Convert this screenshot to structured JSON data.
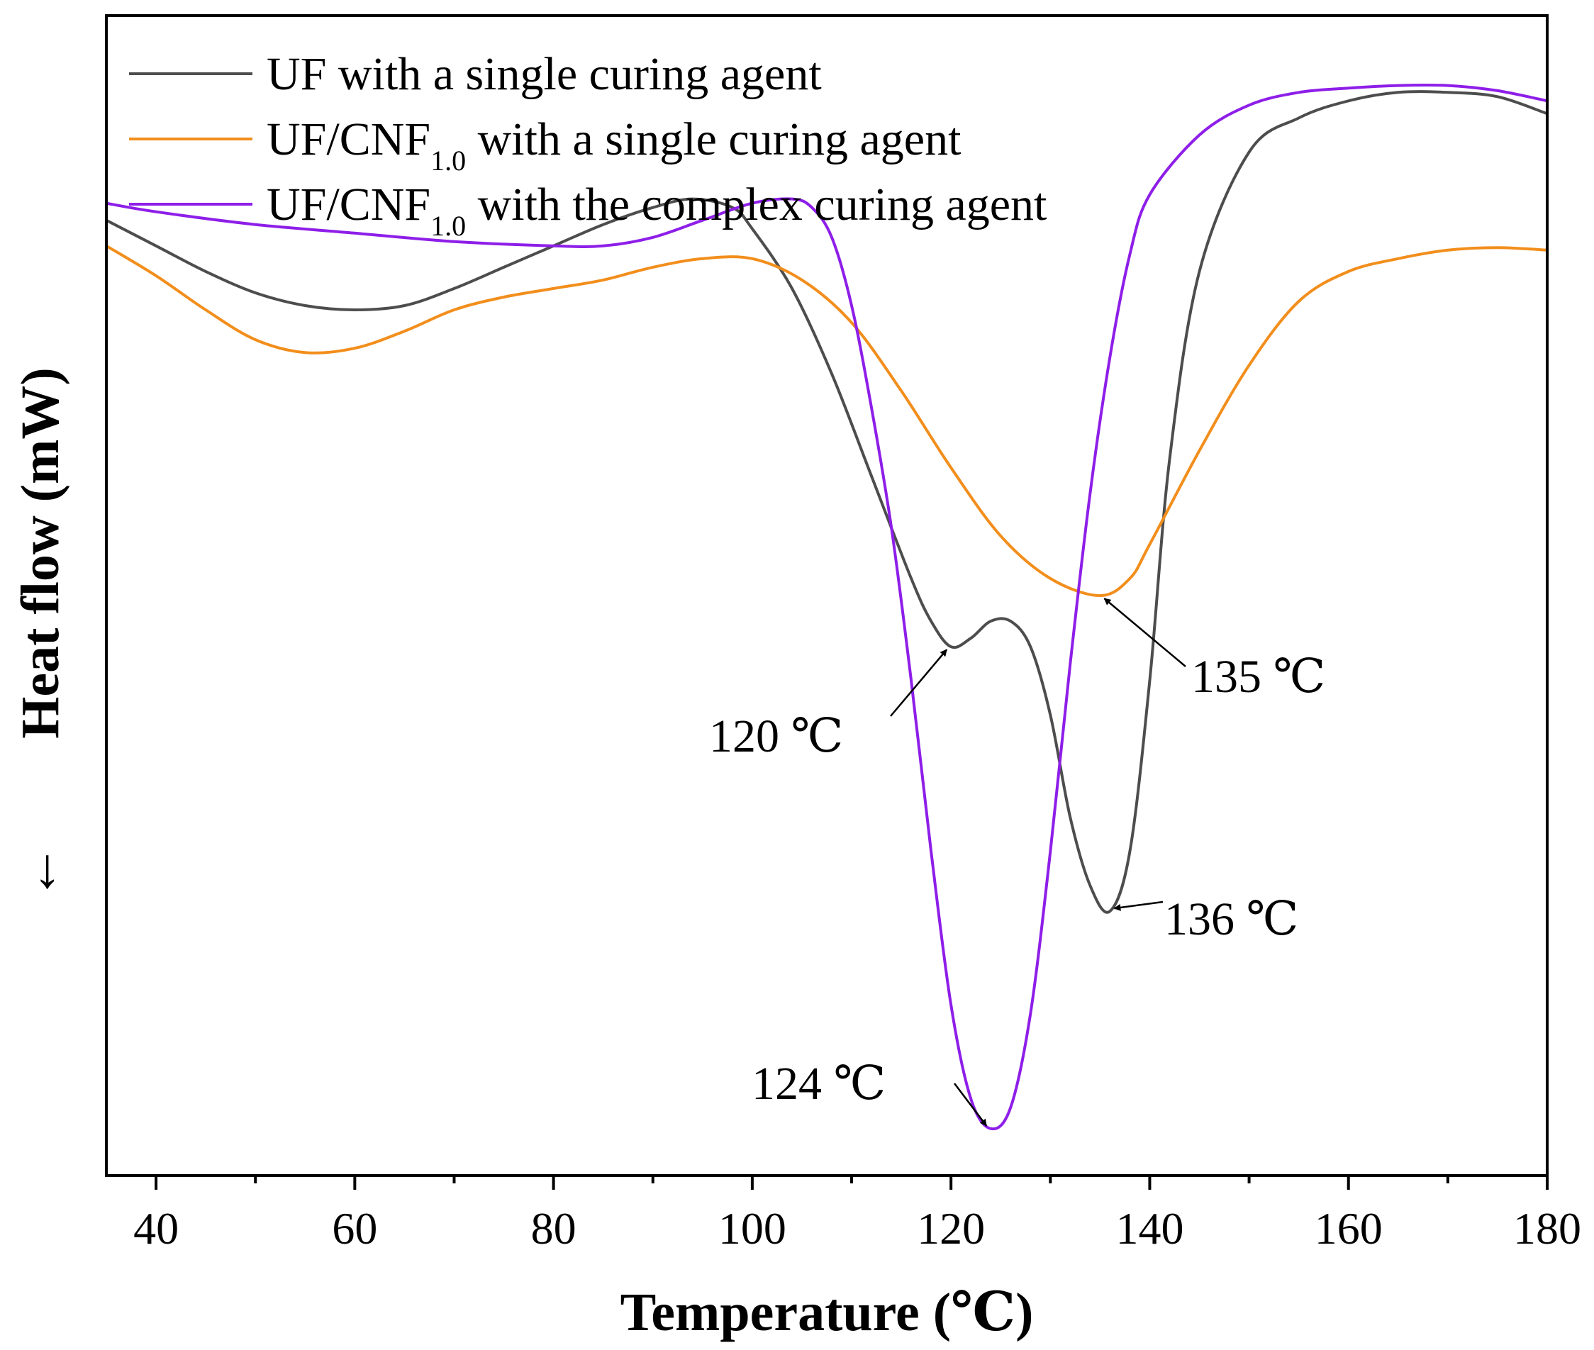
{
  "chart_data": {
    "type": "line",
    "title": "",
    "xlabel": "Temperature (℃)",
    "ylabel": "Heat flow (mW)",
    "ylabel_direction": "←",
    "xlim": [
      35,
      180
    ],
    "ylim": [
      -1.1,
      0.26
    ],
    "x_ticks": [
      40,
      60,
      80,
      100,
      120,
      140,
      160,
      180
    ],
    "x_ticks_minor": [
      50,
      70,
      90,
      110,
      130,
      150,
      170
    ],
    "grid": false,
    "legend_position": "top-left",
    "series": [
      {
        "name": "UF with a single curing agent",
        "legend_main": "UF with a single curing agent",
        "legend_sub": "",
        "legend_tail": "",
        "color": "#4d4d4d",
        "points": [
          [
            35,
            0.02
          ],
          [
            40,
            -0.01
          ],
          [
            45,
            -0.04
          ],
          [
            50,
            -0.065
          ],
          [
            55,
            -0.08
          ],
          [
            60,
            -0.085
          ],
          [
            65,
            -0.08
          ],
          [
            70,
            -0.06
          ],
          [
            75,
            -0.035
          ],
          [
            80,
            -0.01
          ],
          [
            85,
            0.015
          ],
          [
            90,
            0.035
          ],
          [
            94,
            0.045
          ],
          [
            98,
            0.035
          ],
          [
            100,
            0.01
          ],
          [
            104,
            -0.06
          ],
          [
            108,
            -0.16
          ],
          [
            112,
            -0.28
          ],
          [
            116,
            -0.4
          ],
          [
            118,
            -0.45
          ],
          [
            120,
            -0.48
          ],
          [
            122,
            -0.47
          ],
          [
            124,
            -0.45
          ],
          [
            126,
            -0.45
          ],
          [
            128,
            -0.48
          ],
          [
            130,
            -0.56
          ],
          [
            132,
            -0.68
          ],
          [
            134,
            -0.76
          ],
          [
            136,
            -0.79
          ],
          [
            138,
            -0.72
          ],
          [
            140,
            -0.52
          ],
          [
            142,
            -0.26
          ],
          [
            145,
            -0.04
          ],
          [
            150,
            0.1
          ],
          [
            155,
            0.14
          ],
          [
            160,
            0.16
          ],
          [
            165,
            0.17
          ],
          [
            170,
            0.17
          ],
          [
            175,
            0.165
          ],
          [
            180,
            0.145
          ]
        ]
      },
      {
        "name": "UF/CNF1.0 with a single curing agent",
        "legend_main": "UF/CNF",
        "legend_sub": "1.0",
        "legend_tail": " with a single curing agent",
        "color": "#f28e1c",
        "points": [
          [
            35,
            -0.01
          ],
          [
            40,
            -0.045
          ],
          [
            45,
            -0.085
          ],
          [
            50,
            -0.12
          ],
          [
            55,
            -0.135
          ],
          [
            60,
            -0.13
          ],
          [
            65,
            -0.11
          ],
          [
            70,
            -0.085
          ],
          [
            75,
            -0.07
          ],
          [
            80,
            -0.06
          ],
          [
            85,
            -0.05
          ],
          [
            90,
            -0.035
          ],
          [
            95,
            -0.025
          ],
          [
            100,
            -0.025
          ],
          [
            105,
            -0.05
          ],
          [
            110,
            -0.1
          ],
          [
            115,
            -0.18
          ],
          [
            120,
            -0.27
          ],
          [
            125,
            -0.35
          ],
          [
            130,
            -0.4
          ],
          [
            135,
            -0.42
          ],
          [
            138,
            -0.4
          ],
          [
            140,
            -0.36
          ],
          [
            145,
            -0.25
          ],
          [
            150,
            -0.15
          ],
          [
            155,
            -0.075
          ],
          [
            160,
            -0.04
          ],
          [
            165,
            -0.025
          ],
          [
            170,
            -0.015
          ],
          [
            175,
            -0.012
          ],
          [
            180,
            -0.015
          ]
        ]
      },
      {
        "name": "UF/CNF1.0 with the complex curing agent",
        "legend_main": "UF/CNF",
        "legend_sub": "1.0",
        "legend_tail": " with the complex curing agent",
        "color": "#8e1ee8",
        "points": [
          [
            35,
            0.04
          ],
          [
            40,
            0.03
          ],
          [
            50,
            0.015
          ],
          [
            60,
            0.005
          ],
          [
            70,
            -0.005
          ],
          [
            80,
            -0.01
          ],
          [
            85,
            -0.01
          ],
          [
            90,
            0.0
          ],
          [
            95,
            0.02
          ],
          [
            100,
            0.04
          ],
          [
            104,
            0.045
          ],
          [
            106,
            0.035
          ],
          [
            108,
            0.0
          ],
          [
            110,
            -0.08
          ],
          [
            112,
            -0.2
          ],
          [
            114,
            -0.34
          ],
          [
            116,
            -0.52
          ],
          [
            118,
            -0.72
          ],
          [
            120,
            -0.9
          ],
          [
            122,
            -1.01
          ],
          [
            124,
            -1.045
          ],
          [
            126,
            -1.02
          ],
          [
            128,
            -0.91
          ],
          [
            130,
            -0.72
          ],
          [
            132,
            -0.5
          ],
          [
            134,
            -0.3
          ],
          [
            136,
            -0.14
          ],
          [
            138,
            -0.02
          ],
          [
            140,
            0.05
          ],
          [
            145,
            0.12
          ],
          [
            150,
            0.155
          ],
          [
            155,
            0.17
          ],
          [
            160,
            0.175
          ],
          [
            165,
            0.178
          ],
          [
            170,
            0.178
          ],
          [
            175,
            0.172
          ],
          [
            180,
            0.16
          ]
        ]
      }
    ],
    "annotations": [
      {
        "label": "120 ℃",
        "series": 0,
        "x": 120,
        "y": -0.48
      },
      {
        "label": "124 ℃",
        "series": 2,
        "x": 124,
        "y": -1.045
      },
      {
        "label": "135 ℃",
        "series": 1,
        "x": 135,
        "y": -0.42
      },
      {
        "label": "136 ℃",
        "series": 0,
        "x": 136,
        "y": -0.79
      }
    ]
  }
}
